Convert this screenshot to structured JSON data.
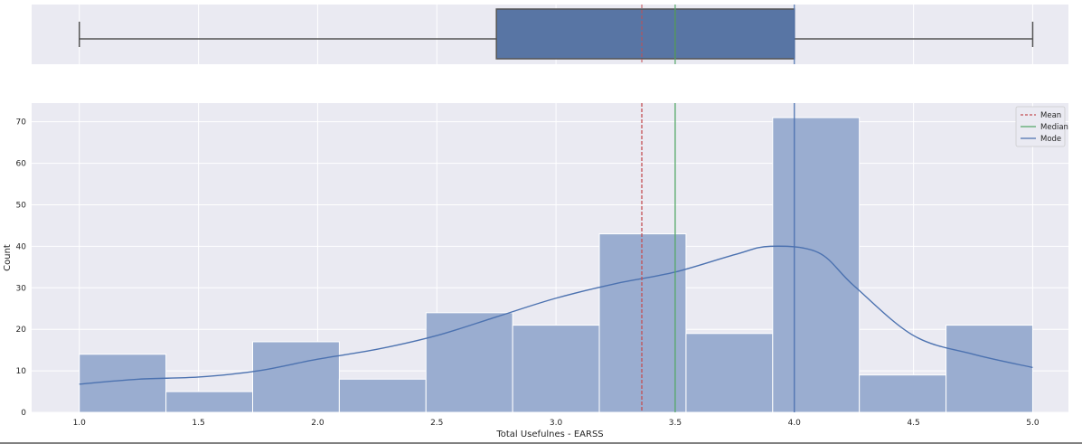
{
  "chart_data": [
    {
      "type": "box",
      "whisker_low": 1.0,
      "q1": 2.75,
      "median": 3.5,
      "q3": 4.0,
      "whisker_high": 5.0,
      "mean": 3.36,
      "mode": 4.0,
      "xlim": [
        0.8,
        5.15
      ],
      "grid": true,
      "colors": {
        "box": "#5875a4",
        "edge": "#555555",
        "mean": "#c44e52",
        "median": "#55a868",
        "mode": "#4c72b0"
      }
    },
    {
      "type": "bar",
      "xlabel": "Total Usefulnes - EARSS",
      "ylabel": "Count",
      "bin_edges": [
        1.0,
        1.3636,
        1.7273,
        2.0909,
        2.4545,
        2.8182,
        3.1818,
        3.5455,
        3.9091,
        4.2727,
        4.6364,
        5.0
      ],
      "values": [
        14,
        5,
        17,
        8,
        24,
        21,
        43,
        19,
        71,
        9,
        21
      ],
      "kde": {
        "x": [
          1.0,
          1.25,
          1.5,
          1.75,
          2.0,
          2.25,
          2.5,
          2.75,
          3.0,
          3.25,
          3.5,
          3.75,
          3.9,
          4.1,
          4.25,
          4.5,
          4.75,
          5.0
        ],
        "y": [
          6.8,
          8.0,
          8.5,
          10.0,
          12.8,
          15.2,
          18.5,
          23.0,
          27.5,
          31.0,
          33.8,
          38.0,
          40.0,
          38.5,
          30.5,
          18.5,
          14.0,
          10.8
        ]
      },
      "xticks": [
        "1.0",
        "1.5",
        "2.0",
        "2.5",
        "3.0",
        "3.5",
        "4.0",
        "4.5",
        "5.0"
      ],
      "yticks": [
        "0",
        "10",
        "20",
        "30",
        "40",
        "50",
        "60",
        "70"
      ],
      "xlim": [
        0.8,
        5.15
      ],
      "ylim": [
        0,
        74.5
      ],
      "lines": [
        {
          "name": "Mean",
          "x": 3.36,
          "style": "dashed",
          "color": "#c44e52"
        },
        {
          "name": "Median",
          "x": 3.5,
          "style": "solid",
          "color": "#55a868"
        },
        {
          "name": "Mode",
          "x": 4.0,
          "style": "solid",
          "color": "#4c72b0"
        }
      ],
      "legend": "top-right",
      "grid": true,
      "colors": {
        "bars": "#9aadd0",
        "kde": "#4c72b0"
      }
    }
  ]
}
